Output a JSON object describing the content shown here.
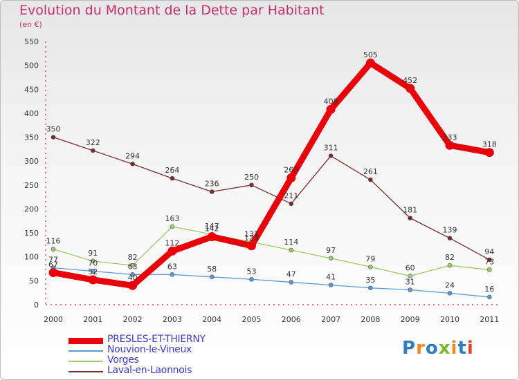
{
  "header": {
    "title": "Evolution du Montant de la Dette par Habitant",
    "subtitle": "(en €)"
  },
  "logo": {
    "text": "Proxiti",
    "colors": [
      "#2d7fc2",
      "#f08a1e",
      "#2d7fc2",
      "#7cb830",
      "#f08a1e",
      "#2d7fc2",
      "#e0482a"
    ]
  },
  "chart_data": {
    "type": "line",
    "title": "Evolution du Montant de la Dette par Habitant",
    "subtitle": "(en €)",
    "xlabel": "",
    "ylabel": "",
    "x": [
      "2000",
      "2001",
      "2002",
      "2003",
      "2004",
      "2005",
      "2006",
      "2007",
      "2008",
      "2009",
      "2010",
      "2011"
    ],
    "ylim": [
      0,
      550
    ],
    "yticks": [
      0,
      50,
      100,
      150,
      200,
      250,
      300,
      350,
      400,
      450,
      500,
      550
    ],
    "grid": false,
    "legend_position": "bottom-left",
    "series": [
      {
        "name": "PRESLES-ET-THIERNY",
        "color": "#e8000b",
        "values": [
          67,
          52,
          40,
          112,
          142,
          123,
          265,
          408,
          505,
          452,
          333,
          318
        ]
      },
      {
        "name": "Nouvion-le-Vineux",
        "color": "#5b9bd5",
        "values": [
          77,
          70,
          63,
          63,
          58,
          53,
          47,
          41,
          35,
          31,
          24,
          16
        ]
      },
      {
        "name": "Vorges",
        "color": "#99cc66",
        "values": [
          116,
          91,
          82,
          163,
          147,
          131,
          114,
          97,
          79,
          60,
          82,
          73
        ]
      },
      {
        "name": "Laval-en-Laonnois",
        "color": "#7a2a2a",
        "values": [
          350,
          322,
          294,
          264,
          236,
          250,
          211,
          311,
          261,
          181,
          139,
          94
        ]
      }
    ]
  }
}
